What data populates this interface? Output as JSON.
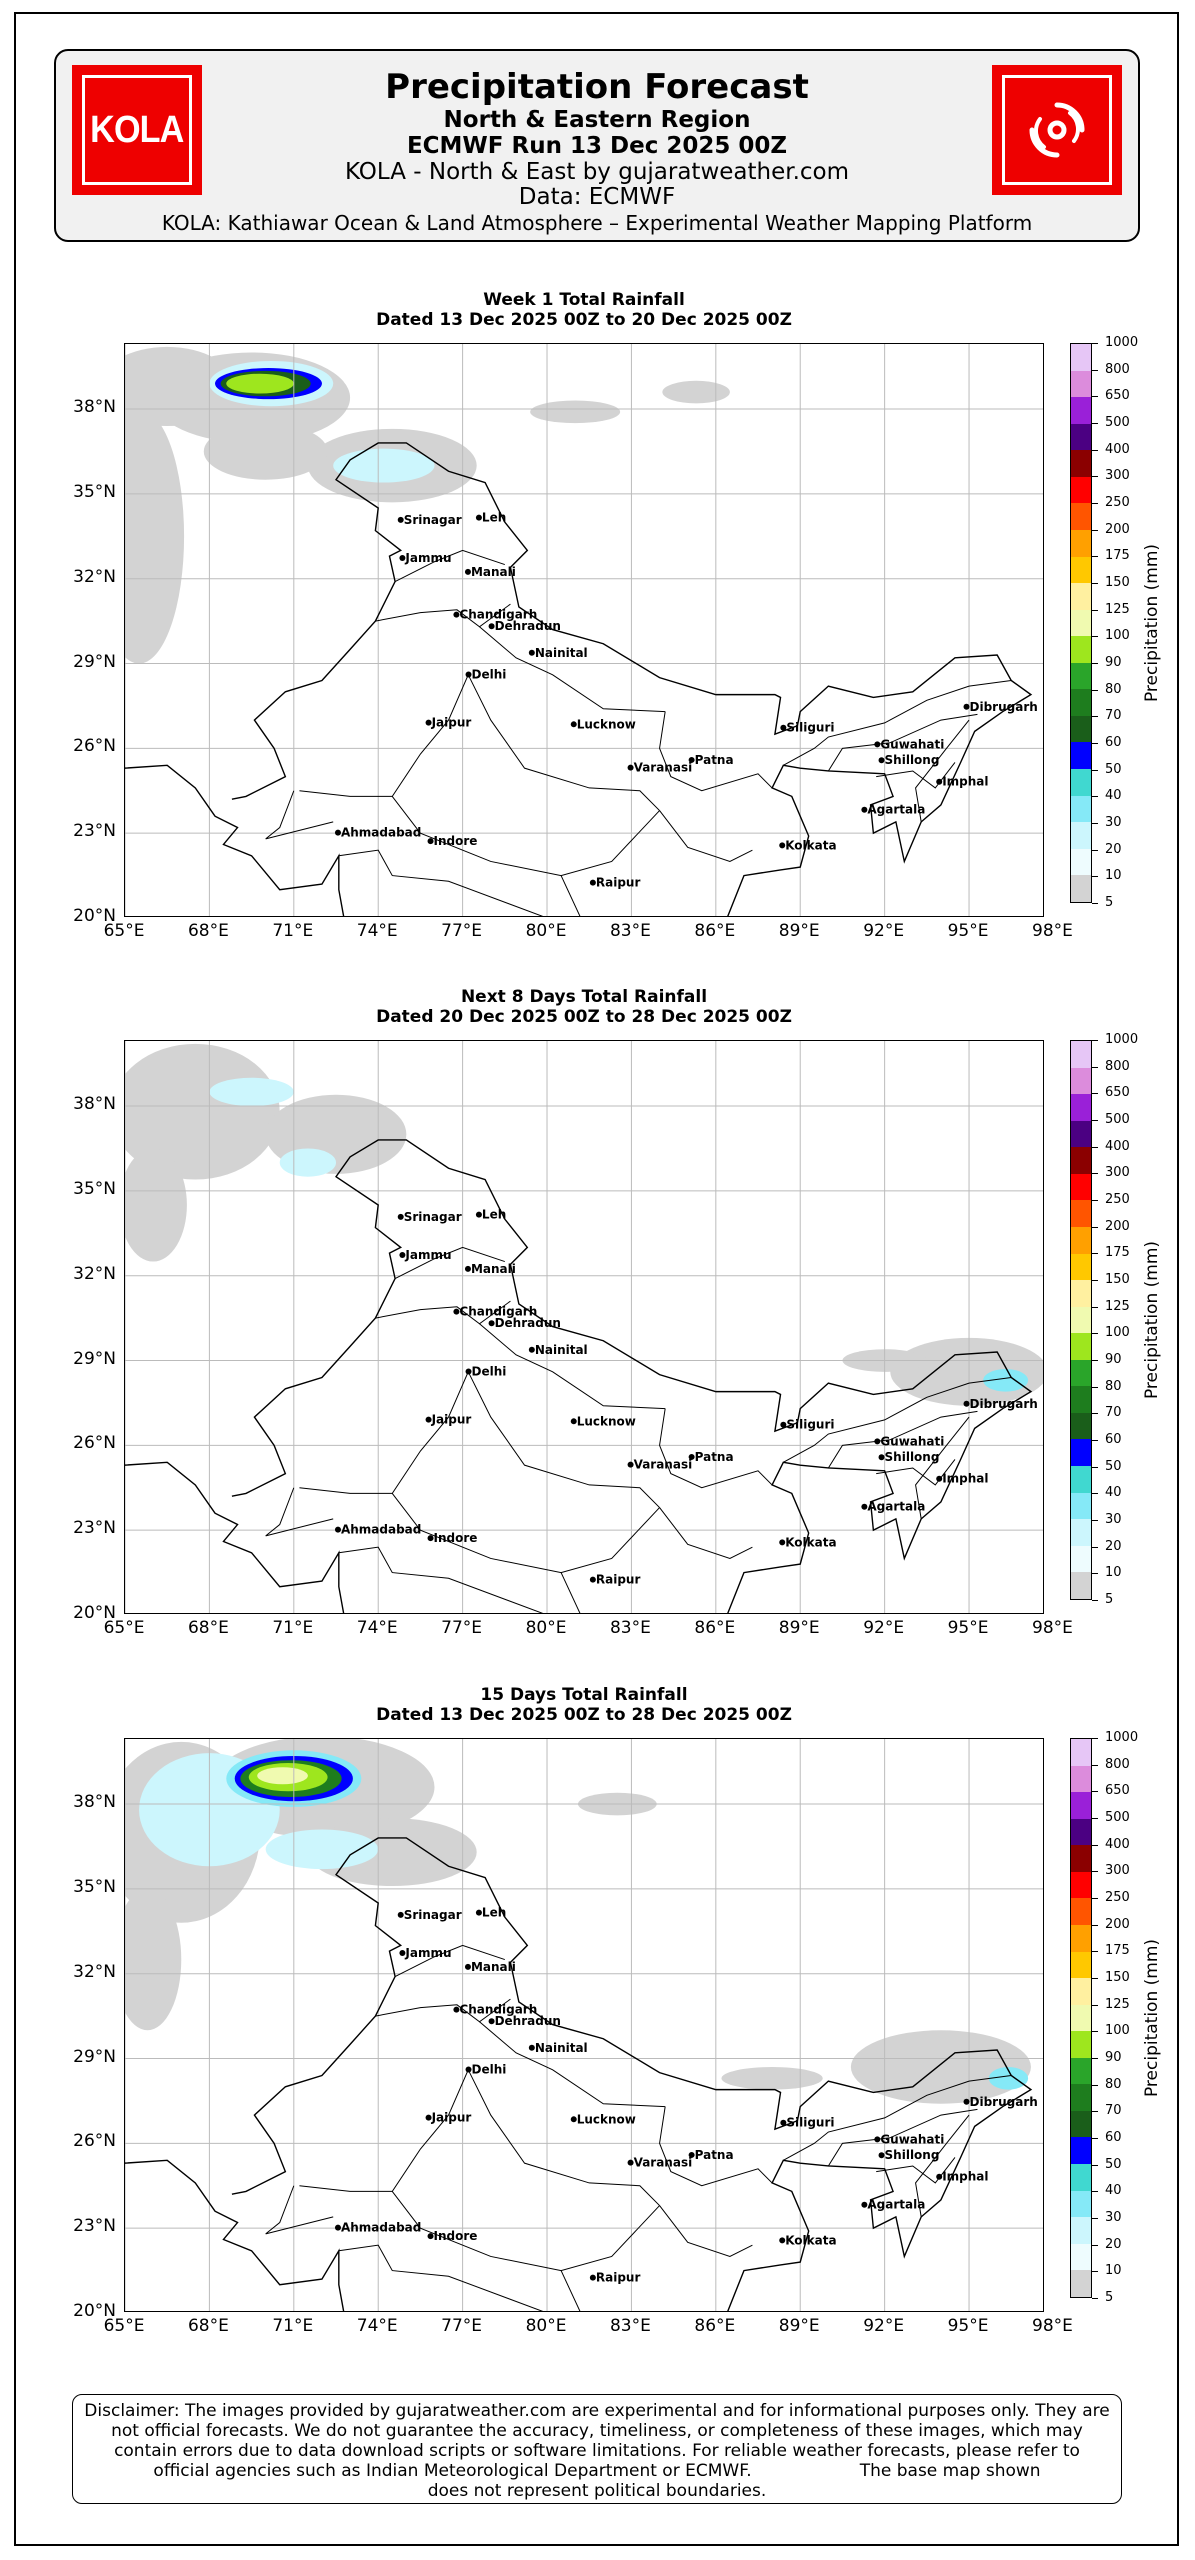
{
  "header": {
    "logo_left_text": "KOLA",
    "logo_right_icon": "swirl-icon",
    "title": "Precipitation Forecast",
    "subtitle1": "North & Eastern Region",
    "subtitle2": "ECMWF Run 13 Dec 2025 00Z",
    "subtitle3": "KOLA - North & East by gujaratweather.com",
    "subtitle4": "Data: ECMWF",
    "subtitle5": "KOLA: Kathiawar Ocean & Land Atmosphere – Experimental Weather Mapping Platform"
  },
  "colors": {
    "logo_red": "#ee0000"
  },
  "axes": {
    "lat_ticks": [
      "38°N",
      "35°N",
      "32°N",
      "29°N",
      "26°N",
      "23°N",
      "20°N"
    ],
    "lon_ticks": [
      "65°E",
      "68°E",
      "71°E",
      "74°E",
      "77°E",
      "80°E",
      "83°E",
      "86°E",
      "89°E",
      "92°E",
      "95°E",
      "98°E"
    ],
    "lat_range": [
      20,
      40.3
    ],
    "lon_range": [
      65,
      97.7
    ],
    "grid": true
  },
  "colorbar": {
    "label": "Precipitation (mm)",
    "levels": [
      "5",
      "10",
      "20",
      "30",
      "40",
      "50",
      "60",
      "70",
      "80",
      "90",
      "100",
      "125",
      "150",
      "175",
      "200",
      "250",
      "300",
      "400",
      "500",
      "650",
      "800",
      "1000"
    ],
    "colors": [
      "#f5f5f5",
      "#d3d3d3",
      "#eefcfe",
      "#ccf6fd",
      "#85e9f7",
      "#40d8d0",
      "#0000ff",
      "#1a5e1a",
      "#1e7d1e",
      "#2aa52a",
      "#9ee61e",
      "#f0fab0",
      "#fff0a0",
      "#ffc800",
      "#ffa000",
      "#ff5500",
      "#ff0000",
      "#8b0000",
      "#4b0082",
      "#9a20d8",
      "#dc8cdc",
      "#e6c6f6"
    ]
  },
  "cities": [
    {
      "name": "Srinagar",
      "lat": 34.08,
      "lon": 74.8
    },
    {
      "name": "Leh",
      "lat": 34.16,
      "lon": 77.58
    },
    {
      "name": "Jammu",
      "lat": 32.73,
      "lon": 74.86
    },
    {
      "name": "Manali",
      "lat": 32.24,
      "lon": 77.19
    },
    {
      "name": "Chandigarh",
      "lat": 30.73,
      "lon": 76.78
    },
    {
      "name": "Dehradun",
      "lat": 30.32,
      "lon": 78.03
    },
    {
      "name": "Nainital",
      "lat": 29.38,
      "lon": 79.46
    },
    {
      "name": "Delhi",
      "lat": 28.61,
      "lon": 77.21
    },
    {
      "name": "Jaipur",
      "lat": 26.91,
      "lon": 75.79
    },
    {
      "name": "Lucknow",
      "lat": 26.85,
      "lon": 80.95
    },
    {
      "name": "Varanasi",
      "lat": 25.32,
      "lon": 82.97
    },
    {
      "name": "Patna",
      "lat": 25.59,
      "lon": 85.14
    },
    {
      "name": "Siliguri",
      "lat": 26.73,
      "lon": 88.4
    },
    {
      "name": "Guwahati",
      "lat": 26.14,
      "lon": 91.74
    },
    {
      "name": "Shillong",
      "lat": 25.58,
      "lon": 91.89
    },
    {
      "name": "Dibrugarh",
      "lat": 27.47,
      "lon": 94.91
    },
    {
      "name": "Imphal",
      "lat": 24.82,
      "lon": 93.94
    },
    {
      "name": "Agartala",
      "lat": 23.83,
      "lon": 91.28
    },
    {
      "name": "Kolkata",
      "lat": 22.57,
      "lon": 88.36
    },
    {
      "name": "Ahmadabad",
      "lat": 23.02,
      "lon": 72.57
    },
    {
      "name": "Indore",
      "lat": 22.72,
      "lon": 75.86
    },
    {
      "name": "Raipur",
      "lat": 21.25,
      "lon": 81.63
    }
  ],
  "panels": [
    {
      "title": "Week 1 Total Rainfall",
      "dated": "Dated 13 Dec 2025 00Z to 20 Dec 2025 00Z",
      "blobs": [
        {
          "lon": 65.5,
          "lat": 33.5,
          "rx": 1.6,
          "ry": 4.5,
          "level": 1
        },
        {
          "lon": 66.5,
          "lat": 38.8,
          "rx": 2.4,
          "ry": 1.4,
          "level": 1
        },
        {
          "lon": 69.5,
          "lat": 38.4,
          "rx": 3.5,
          "ry": 1.6,
          "level": 1
        },
        {
          "lon": 74.5,
          "lat": 36.0,
          "rx": 3.0,
          "ry": 1.3,
          "level": 1
        },
        {
          "lon": 70.0,
          "lat": 36.5,
          "rx": 2.2,
          "ry": 1.0,
          "level": 1
        },
        {
          "lon": 70.2,
          "lat": 38.9,
          "rx": 2.2,
          "ry": 0.8,
          "level": 3
        },
        {
          "lon": 74.2,
          "lat": 36.0,
          "rx": 1.8,
          "ry": 0.6,
          "level": 3
        },
        {
          "lon": 70.1,
          "lat": 38.9,
          "rx": 1.9,
          "ry": 0.55,
          "level": 6
        },
        {
          "lon": 70.0,
          "lat": 38.9,
          "rx": 1.6,
          "ry": 0.45,
          "level": 7
        },
        {
          "lon": 69.8,
          "lat": 38.9,
          "rx": 1.2,
          "ry": 0.35,
          "level": 10
        },
        {
          "lon": 81.0,
          "lat": 37.9,
          "rx": 1.6,
          "ry": 0.4,
          "level": 1
        },
        {
          "lon": 85.3,
          "lat": 38.6,
          "rx": 1.2,
          "ry": 0.4,
          "level": 1
        }
      ]
    },
    {
      "title": "Next 8 Days Total Rainfall",
      "dated": "Dated 20 Dec 2025 00Z to 28 Dec 2025 00Z",
      "blobs": [
        {
          "lon": 67.5,
          "lat": 37.8,
          "rx": 3.0,
          "ry": 2.4,
          "level": 1
        },
        {
          "lon": 66.0,
          "lat": 34.5,
          "rx": 1.2,
          "ry": 2.0,
          "level": 1
        },
        {
          "lon": 72.5,
          "lat": 37.0,
          "rx": 2.5,
          "ry": 1.4,
          "level": 1
        },
        {
          "lon": 69.5,
          "lat": 38.5,
          "rx": 1.5,
          "ry": 0.5,
          "level": 3
        },
        {
          "lon": 71.5,
          "lat": 36.0,
          "rx": 1.0,
          "ry": 0.5,
          "level": 3
        },
        {
          "lon": 95.0,
          "lat": 28.6,
          "rx": 2.8,
          "ry": 1.2,
          "level": 1
        },
        {
          "lon": 92.0,
          "lat": 29.0,
          "rx": 1.5,
          "ry": 0.4,
          "level": 1
        },
        {
          "lon": 96.3,
          "lat": 28.3,
          "rx": 0.8,
          "ry": 0.4,
          "level": 4
        }
      ]
    },
    {
      "title": "15 Days Total Rainfall",
      "dated": "Dated 13 Dec 2025 00Z to 28 Dec 2025 00Z",
      "blobs": [
        {
          "lon": 67.0,
          "lat": 37.0,
          "rx": 2.8,
          "ry": 3.2,
          "level": 1
        },
        {
          "lon": 65.8,
          "lat": 32.5,
          "rx": 1.2,
          "ry": 2.5,
          "level": 1
        },
        {
          "lon": 72.0,
          "lat": 38.6,
          "rx": 4.0,
          "ry": 1.8,
          "level": 1
        },
        {
          "lon": 74.5,
          "lat": 36.3,
          "rx": 3.0,
          "ry": 1.2,
          "level": 1
        },
        {
          "lon": 68.0,
          "lat": 37.8,
          "rx": 2.5,
          "ry": 2.0,
          "level": 3
        },
        {
          "lon": 72.0,
          "lat": 36.4,
          "rx": 2.0,
          "ry": 0.7,
          "level": 3
        },
        {
          "lon": 71.0,
          "lat": 38.9,
          "rx": 2.4,
          "ry": 1.0,
          "level": 4
        },
        {
          "lon": 71.0,
          "lat": 38.9,
          "rx": 2.1,
          "ry": 0.8,
          "level": 6
        },
        {
          "lon": 70.9,
          "lat": 38.9,
          "rx": 1.8,
          "ry": 0.65,
          "level": 8
        },
        {
          "lon": 70.8,
          "lat": 38.95,
          "rx": 1.4,
          "ry": 0.5,
          "level": 10
        },
        {
          "lon": 70.6,
          "lat": 39.0,
          "rx": 0.9,
          "ry": 0.3,
          "level": 11
        },
        {
          "lon": 94.0,
          "lat": 28.7,
          "rx": 3.2,
          "ry": 1.3,
          "level": 1
        },
        {
          "lon": 88.0,
          "lat": 28.3,
          "rx": 1.8,
          "ry": 0.4,
          "level": 1
        },
        {
          "lon": 82.5,
          "lat": 38.0,
          "rx": 1.4,
          "ry": 0.4,
          "level": 1
        },
        {
          "lon": 96.4,
          "lat": 28.3,
          "rx": 0.7,
          "ry": 0.4,
          "level": 4
        }
      ]
    }
  ],
  "disclaimer": {
    "line1": "Disclaimer: The images provided by gujaratweather.com are experimental and for informational purposes only. They are",
    "line2": "not official forecasts. We do not guarantee the accuracy, timeliness, or completeness of these images, which may",
    "line3": "contain errors due to data download scripts or software limitations. For reliable weather forecasts, please refer to",
    "line4": "official agencies such as Indian Meteorological Department or ECMWF.                    The base map shown",
    "line5": "does not represent political boundaries."
  }
}
